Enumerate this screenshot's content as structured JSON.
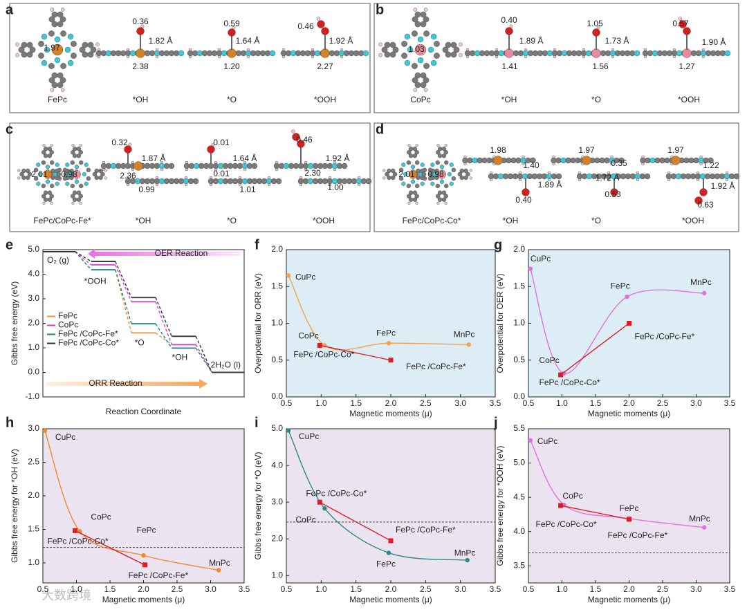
{
  "structures": [
    {
      "letter": "a",
      "labels": [
        "1.97",
        "0.36",
        "1.82 Å",
        "2.38",
        "0.59",
        "1.64 Å",
        "1.20",
        "0.46",
        "1.92 Å",
        "2.27"
      ],
      "names": [
        "FePc",
        "*OH",
        "*O",
        "*OOH"
      ]
    },
    {
      "letter": "b",
      "labels": [
        "1.03",
        "0.40",
        "1.89 Å",
        "1.41",
        "1.05",
        "1.73 Å",
        "1.56",
        "0.57",
        "1.90 Å",
        "1.27"
      ],
      "names": [
        "CoPc",
        "*OH",
        "*O",
        "*OOH"
      ]
    },
    {
      "letter": "c",
      "labels": [
        "2.01",
        "0.98",
        "0.32",
        "1.87 Å",
        "2.36",
        "0.99",
        "0.01",
        "1.64 Å",
        "0.01",
        "1.01",
        "0.46",
        "1.92 Å",
        "2.30",
        "1.00"
      ],
      "names": [
        "FePc/CoPc-Fe*",
        "*OH",
        "*O",
        "*OOH"
      ]
    },
    {
      "letter": "d",
      "labels": [
        "2.01",
        "0.98",
        "1.98",
        "1.40",
        "1.89 Å",
        "0.40",
        "1.97",
        "0.35",
        "1.72 Å",
        "0.53",
        "1.97",
        "1.22",
        "1.92 Å",
        "0.63"
      ],
      "names": [
        "FePc/CoPc-Co*",
        "*OH",
        "*O",
        "*OOH"
      ]
    }
  ],
  "chart_data": [
    {
      "type": "step",
      "letter": "e",
      "ylabel": "Gibbs free energy (eV)",
      "xlabel": "Reaction Coordinate",
      "ylim": [
        -1,
        5
      ],
      "yticks": [
        {
          "value": -1,
          "label": "-1.0"
        },
        {
          "value": 0,
          "label": "0.0"
        },
        {
          "value": 1,
          "label": "1.0"
        },
        {
          "value": 2,
          "label": "2.0"
        },
        {
          "value": 3,
          "label": "3.0"
        },
        {
          "value": 4,
          "label": "4.0"
        },
        {
          "value": 5,
          "label": "5.0"
        }
      ],
      "states": [
        "O₂ (g)",
        "*OOH",
        "*O",
        "*OH",
        "2H₂O (l)"
      ],
      "arrows": [
        "OER Reaction",
        "ORR Reaction"
      ],
      "legend": "center left",
      "series": [
        {
          "name": "FePc",
          "color": "#f0932b",
          "values": [
            4.92,
            4.18,
            1.61,
            1.13,
            0
          ]
        },
        {
          "name": "CoPc",
          "color": "#d63fd6",
          "values": [
            4.92,
            4.38,
            2.88,
            1.13,
            0
          ]
        },
        {
          "name": "FePc /CoPc-Fe*",
          "color": "#1f7f7f",
          "values": [
            4.92,
            4.18,
            1.98,
            0.99,
            0
          ]
        },
        {
          "name": "FePc /CoPc-Co*",
          "color": "#333333",
          "values": [
            4.92,
            4.52,
            3.05,
            1.47,
            0
          ]
        }
      ]
    },
    {
      "type": "scatter",
      "letter": "f",
      "ylabel": "Overpotential for ORR (eV)",
      "xlabel": "Magnetic moments (μ)",
      "xlim": [
        0.5,
        3.5
      ],
      "xticks": [
        0.5,
        {
          "value": 1,
          "label": "1.0"
        },
        1.5,
        {
          "value": 2,
          "label": "2.0"
        },
        2.5,
        {
          "value": 3,
          "label": "3.0"
        },
        3.5
      ],
      "ylim": [
        0,
        2
      ],
      "yticks": [
        {
          "value": 0,
          "label": "0.0"
        },
        0.5,
        {
          "value": 1,
          "label": "1.0"
        },
        1.5,
        {
          "value": 2,
          "label": "2.0"
        }
      ],
      "background": "#dcedf5",
      "series": [
        {
          "color": "#f5a04a",
          "marker": "circle",
          "smooth": true,
          "x": [
            0.53,
            1.05,
            1.97,
            3.12
          ],
          "values": [
            1.65,
            0.7,
            0.73,
            0.71
          ],
          "point_labels": [
            "CuPc",
            "CoPc",
            "FePc",
            "MnPc"
          ]
        },
        {
          "color": "#e01b22",
          "marker": "square",
          "x": [
            0.98,
            2.0
          ],
          "values": [
            0.7,
            0.5
          ],
          "point_labels": [
            "FePc /CoPc-Co*",
            "FePc /CoPc-Fe*"
          ]
        }
      ]
    },
    {
      "type": "scatter",
      "letter": "g",
      "ylabel": "Overpotential for OER (eV)",
      "xlabel": "Magnetic moments (μ)",
      "xlim": [
        0.5,
        3.5
      ],
      "xticks": [
        0.5,
        {
          "value": 1,
          "label": "1.0"
        },
        1.5,
        {
          "value": 2,
          "label": "2.0"
        },
        2.5,
        {
          "value": 3,
          "label": "3.0"
        },
        3.5
      ],
      "ylim": [
        0,
        2
      ],
      "yticks": [
        {
          "value": 0,
          "label": "0.0"
        },
        0.5,
        {
          "value": 1,
          "label": "1.0"
        },
        1.5,
        {
          "value": 2,
          "label": "2.0"
        }
      ],
      "background": "#dcedf5",
      "series": [
        {
          "color": "#e070e0",
          "marker": "circle",
          "smooth": true,
          "x": [
            0.53,
            1.03,
            1.97,
            3.12
          ],
          "values": [
            1.74,
            0.32,
            1.36,
            1.41
          ],
          "point_labels": [
            "CuPc",
            "CoPc",
            "FePc",
            "MnPc"
          ]
        },
        {
          "color": "#e01b22",
          "marker": "square",
          "x": [
            0.98,
            2.0
          ],
          "values": [
            0.3,
            1.0
          ],
          "point_labels": [
            "FePc /CoPc-Co*",
            "FePc /CoPc-Fe*"
          ]
        }
      ]
    },
    {
      "type": "scatter",
      "letter": "h",
      "ylabel": "Gibbs free energy for *OH (eV)",
      "xlabel": "Magnetic moments (μ)",
      "xlim": [
        0.5,
        3.5
      ],
      "xticks": [
        0.5,
        {
          "value": 1,
          "label": "1.0"
        },
        1.5,
        {
          "value": 2,
          "label": "2.0"
        },
        2.5,
        {
          "value": 3,
          "label": "3.0"
        },
        3.5
      ],
      "ylim": [
        0.7,
        3
      ],
      "yticks": [
        {
          "value": 1,
          "label": "1.0"
        },
        1.5,
        {
          "value": 2,
          "label": "2.0"
        },
        2.5,
        {
          "value": 3,
          "label": "3.0"
        }
      ],
      "background": "#ebe3f0",
      "hline": 1.23,
      "series": [
        {
          "color": "#f08a2a",
          "marker": "circle",
          "smooth": true,
          "x": [
            0.53,
            1.05,
            2.0,
            3.12
          ],
          "values": [
            2.97,
            1.47,
            1.11,
            0.89
          ],
          "point_labels": [
            "CuPc",
            "CoPc",
            "FePc",
            "MnPc"
          ]
        },
        {
          "color": "#e01b22",
          "marker": "square",
          "x": [
            0.98,
            2.02
          ],
          "values": [
            1.48,
            0.97
          ],
          "point_labels": [
            "FePc /CoPc-Co*",
            "FePc /CoPc-Fe*"
          ]
        }
      ]
    },
    {
      "type": "scatter",
      "letter": "i",
      "ylabel": "Gibbs free energy for *O (eV)",
      "xlabel": "Magnetic moments (μ)",
      "xlim": [
        0.5,
        3.5
      ],
      "xticks": [
        0.5,
        {
          "value": 1,
          "label": "1.0"
        },
        1.5,
        {
          "value": 2,
          "label": "2.0"
        },
        2.5,
        {
          "value": 3,
          "label": "3.0"
        },
        3.5
      ],
      "ylim": [
        0.8,
        5
      ],
      "yticks": [
        {
          "value": 1,
          "label": "1.0"
        },
        {
          "value": 2,
          "label": "2.0"
        },
        {
          "value": 3,
          "label": "3.0"
        },
        {
          "value": 4,
          "label": "4.0"
        },
        {
          "value": 5,
          "label": "5.0"
        }
      ],
      "background": "#ebe3f0",
      "hline": 2.46,
      "series": [
        {
          "color": "#2a8a8a",
          "marker": "circle",
          "smooth": true,
          "x": [
            0.53,
            1.05,
            1.97,
            3.1
          ],
          "values": [
            4.95,
            2.83,
            1.62,
            1.42
          ],
          "point_labels": [
            "CuPc",
            "CoPc",
            "FePc",
            "MnPc"
          ]
        },
        {
          "color": "#e01b22",
          "marker": "square",
          "x": [
            0.98,
            2.0
          ],
          "values": [
            3.0,
            1.95
          ],
          "point_labels": [
            "FePc /CoPc-Co*",
            "FePc /CoPc-Fe*"
          ]
        }
      ]
    },
    {
      "type": "scatter",
      "letter": "j",
      "ylabel": "Gibbs free energy for *OOH (eV)",
      "xlabel": "Magnetic moments (μ)",
      "xlim": [
        0.5,
        3.5
      ],
      "xticks": [
        0.5,
        {
          "value": 1,
          "label": "1.0"
        },
        1.5,
        {
          "value": 2,
          "label": "2.0"
        },
        2.5,
        {
          "value": 3,
          "label": "3.0"
        },
        3.5
      ],
      "ylim": [
        3.25,
        5.5
      ],
      "yticks": [
        3.5,
        {
          "value": 4,
          "label": "4.0"
        },
        4.5,
        {
          "value": 5,
          "label": "5.0"
        },
        5.5
      ],
      "background": "#ebe3f0",
      "hline": 3.69,
      "series": [
        {
          "color": "#e070e0",
          "marker": "circle",
          "smooth": true,
          "x": [
            0.53,
            1.03,
            2.0,
            3.12
          ],
          "values": [
            5.33,
            4.39,
            4.19,
            4.06
          ],
          "point_labels": [
            "CuPc",
            "CoPc",
            "FePc",
            "MnPc"
          ]
        },
        {
          "color": "#e01b22",
          "marker": "square",
          "x": [
            0.98,
            2.0
          ],
          "values": [
            4.38,
            4.18
          ],
          "point_labels": [
            "FePc /CoPc-Co*",
            "FePc /CoPc-Fe*"
          ]
        }
      ]
    }
  ],
  "watermark": "大数跨境"
}
